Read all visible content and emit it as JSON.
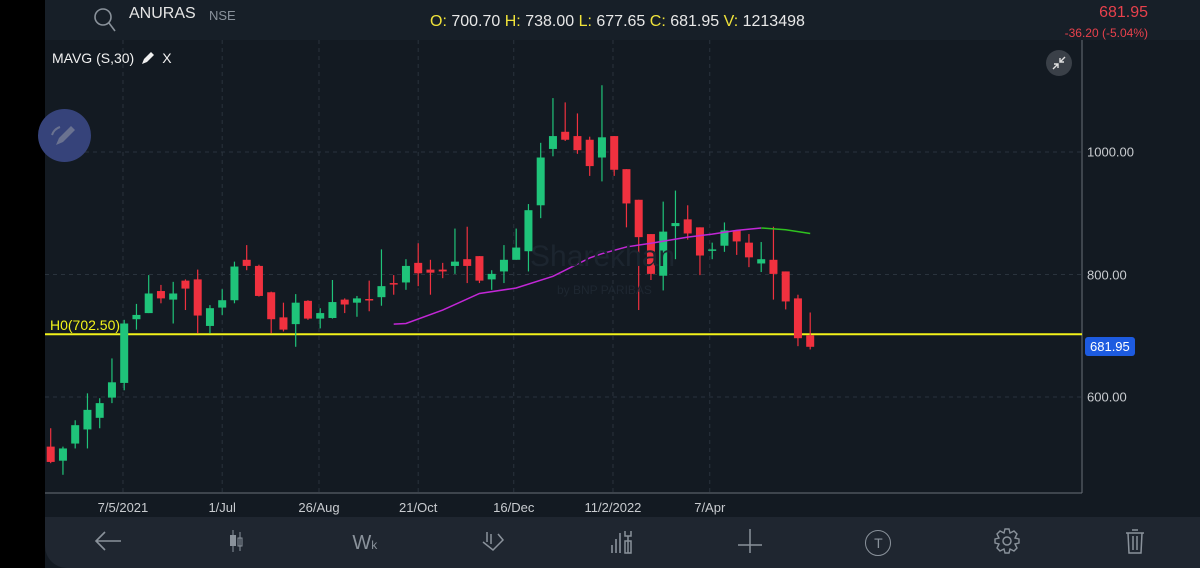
{
  "header": {
    "symbol": "ANURAS",
    "exchange": "NSE",
    "ohlc": {
      "o_label": "O:",
      "o": "700.70",
      "h_label": "H:",
      "h": "738.00",
      "l_label": "L:",
      "l": "677.65",
      "c_label": "C:",
      "c": "681.95",
      "v_label": "V:",
      "v": "1213498"
    },
    "last_price": "681.95",
    "change": "-36.20 (-5.04%)"
  },
  "indicator": {
    "label": "MAVG (S,30)",
    "close": "X"
  },
  "hline_label": "H0(702.50)",
  "watermark": {
    "brand": "Sharekhan",
    "sub": "by BNP PARIBAS"
  },
  "colors": {
    "up": "#1fc47a",
    "down": "#f0313f",
    "ma": "#c227d6",
    "ma_tail": "#2fc21f",
    "hline": "#f2f21a",
    "price_tag": "#1d5be0"
  },
  "chart_data": {
    "type": "candlestick",
    "price_axis": {
      "ticks": [
        "1000.00",
        "800.00",
        "600.00"
      ],
      "tick_values": [
        1000,
        800,
        600
      ],
      "range": [
        435,
        1175
      ]
    },
    "price_tag": "681.95",
    "price_tag_value": 681.95,
    "hline_value": 702.5,
    "x_labels": [
      {
        "label": "7/5/2021",
        "index": 6.9
      },
      {
        "label": "1/Jul",
        "index": 15
      },
      {
        "label": "26/Aug",
        "index": 22.9
      },
      {
        "label": "21/Oct",
        "index": 31
      },
      {
        "label": "16/Dec",
        "index": 38.8
      },
      {
        "label": "11/2/2022",
        "index": 46.9
      },
      {
        "label": "7/Apr",
        "index": 54.8
      }
    ],
    "candles": [
      [
        519,
        549,
        492,
        494
      ],
      [
        496,
        519,
        473,
        516
      ],
      [
        524,
        562,
        516,
        554
      ],
      [
        547,
        606,
        516,
        579
      ],
      [
        566,
        598,
        549,
        590
      ],
      [
        599,
        663,
        590,
        624
      ],
      [
        623,
        726,
        611,
        720
      ],
      [
        727,
        752,
        710,
        734
      ],
      [
        737,
        799,
        737,
        769
      ],
      [
        773,
        783,
        753,
        761
      ],
      [
        759,
        788,
        720,
        769
      ],
      [
        790,
        792,
        742,
        777
      ],
      [
        792,
        808,
        704,
        733
      ],
      [
        716,
        750,
        704,
        745
      ],
      [
        746,
        776,
        734,
        758
      ],
      [
        758,
        821,
        753,
        813
      ],
      [
        824,
        848,
        807,
        814
      ],
      [
        814,
        816,
        764,
        765
      ],
      [
        771,
        772,
        704,
        727
      ],
      [
        730,
        754,
        707,
        710
      ],
      [
        719,
        768,
        682,
        754
      ],
      [
        757,
        758,
        726,
        728
      ],
      [
        728,
        745,
        712,
        737
      ],
      [
        729,
        791,
        728,
        755
      ],
      [
        759,
        761,
        737,
        751
      ],
      [
        754,
        765,
        731,
        761
      ],
      [
        760,
        790,
        740,
        758
      ],
      [
        763,
        841,
        749,
        781
      ],
      [
        786,
        799,
        767,
        785
      ],
      [
        787,
        825,
        775,
        814
      ],
      [
        819,
        851,
        781,
        802
      ],
      [
        808,
        824,
        767,
        803
      ],
      [
        808,
        819,
        794,
        805
      ],
      [
        814,
        875,
        801,
        821
      ],
      [
        825,
        878,
        786,
        814
      ],
      [
        830,
        830,
        786,
        790
      ],
      [
        792,
        807,
        775,
        801
      ],
      [
        805,
        848,
        786,
        824
      ],
      [
        824,
        875,
        824,
        844
      ],
      [
        838,
        915,
        805,
        905
      ],
      [
        913,
        1015,
        892,
        991
      ],
      [
        1005,
        1088,
        993,
        1026
      ],
      [
        1033,
        1081,
        1018,
        1020
      ],
      [
        1026,
        1063,
        997,
        1003
      ],
      [
        1020,
        1025,
        961,
        977
      ],
      [
        991,
        1109,
        952,
        1024
      ],
      [
        1026,
        1026,
        961,
        971
      ],
      [
        972,
        972,
        877,
        916
      ],
      [
        922,
        922,
        742,
        861
      ],
      [
        866,
        866,
        791,
        801
      ],
      [
        798,
        919,
        774,
        870
      ],
      [
        879,
        937,
        825,
        884
      ],
      [
        890,
        913,
        857,
        867
      ],
      [
        877,
        877,
        799,
        831
      ],
      [
        839,
        852,
        825,
        841
      ],
      [
        847,
        885,
        837,
        872
      ],
      [
        872,
        872,
        832,
        854
      ],
      [
        852,
        866,
        812,
        828
      ],
      [
        818,
        853,
        804,
        825
      ],
      [
        824,
        878,
        759,
        801
      ],
      [
        805,
        805,
        743,
        756
      ],
      [
        761,
        767,
        683,
        696
      ],
      [
        700.7,
        738,
        677.65,
        681.95
      ]
    ],
    "ma_points": [
      [
        29,
        719
      ],
      [
        30,
        720
      ],
      [
        33,
        742
      ],
      [
        36,
        769
      ],
      [
        39,
        778
      ],
      [
        42,
        797
      ],
      [
        45,
        827
      ],
      [
        46,
        834
      ],
      [
        48,
        845
      ],
      [
        50,
        851
      ],
      [
        53,
        861
      ],
      [
        55,
        866
      ],
      [
        57,
        872
      ],
      [
        59,
        876
      ],
      [
        61,
        873
      ],
      [
        63,
        867
      ]
    ],
    "ma_tail_from_index": 59
  },
  "toolbar": [
    "back-icon",
    "candlestick-type-icon",
    "timeframe-icon",
    "drawing-tools-icon",
    "indicators-icon",
    "crosshair-icon",
    "text-tool-icon",
    "settings-icon",
    "delete-icon"
  ],
  "toolbar_wk": "Wk",
  "toolbar_t": "T"
}
